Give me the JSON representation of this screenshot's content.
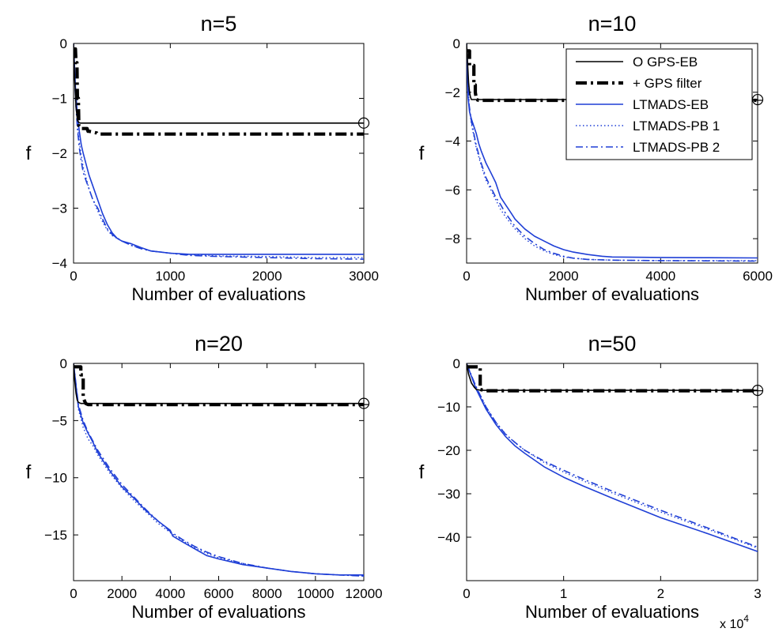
{
  "chart_data": [
    {
      "type": "line",
      "title": "n=5",
      "xlabel": "Number of evaluations",
      "ylabel": "f",
      "xlim": [
        0,
        3000
      ],
      "ylim": [
        -4,
        0
      ],
      "xticks": [
        "0",
        "1000",
        "2000",
        "3000"
      ],
      "yticks": [
        "0",
        "−1",
        "−2",
        "−3",
        "−4"
      ],
      "grid": false,
      "series": [
        {
          "name": "GPS-EB",
          "style": "solid-black",
          "x": [
            0,
            10,
            25,
            40,
            55,
            70,
            3000
          ],
          "y": [
            0,
            -0.6,
            -1.15,
            -1.4,
            -1.44,
            -1.45,
            -1.45
          ],
          "endmarker": "circle"
        },
        {
          "name": "GPS filter",
          "style": "dashdot-black-thick",
          "x": [
            0,
            20,
            25,
            35,
            40,
            50,
            55,
            70,
            140,
            150,
            160,
            240,
            250,
            3000
          ],
          "y": [
            -0.1,
            -0.1,
            -0.35,
            -0.35,
            -1.0,
            -1.0,
            -1.5,
            -1.55,
            -1.55,
            -1.6,
            -1.6,
            -1.63,
            -1.65,
            -1.65
          ],
          "endmarker": "plus"
        },
        {
          "name": "LTMADS-EB",
          "style": "solid-blue",
          "x": [
            0,
            20,
            40,
            60,
            80,
            100,
            130,
            160,
            200,
            250,
            300,
            350,
            400,
            450,
            500,
            600,
            700,
            800,
            900,
            1000,
            1100,
            1200,
            1500,
            2000,
            2500,
            3000
          ],
          "y": [
            0,
            -0.8,
            -1.3,
            -1.6,
            -1.85,
            -2.0,
            -2.2,
            -2.4,
            -2.6,
            -2.85,
            -3.1,
            -3.3,
            -3.45,
            -3.55,
            -3.6,
            -3.65,
            -3.72,
            -3.78,
            -3.8,
            -3.82,
            -3.83,
            -3.84,
            -3.84,
            -3.84,
            -3.84,
            -3.84
          ]
        },
        {
          "name": "LTMADS-PB 1",
          "style": "dotted-blue",
          "x": [
            0,
            20,
            40,
            60,
            80,
            100,
            130,
            160,
            200,
            250,
            300,
            350,
            400,
            500,
            600,
            700,
            800,
            900,
            1000,
            1100,
            1200,
            1500,
            2000,
            2500,
            3000
          ],
          "y": [
            0,
            -1.0,
            -1.5,
            -1.8,
            -2.05,
            -2.25,
            -2.45,
            -2.65,
            -2.85,
            -3.05,
            -3.25,
            -3.4,
            -3.5,
            -3.6,
            -3.68,
            -3.73,
            -3.78,
            -3.8,
            -3.82,
            -3.84,
            -3.85,
            -3.87,
            -3.88,
            -3.9,
            -3.9
          ]
        },
        {
          "name": "LTMADS-PB 2",
          "style": "dashdot-blue",
          "x": [
            0,
            20,
            40,
            60,
            80,
            100,
            130,
            160,
            200,
            250,
            300,
            350,
            400,
            500,
            600,
            700,
            800,
            900,
            1000,
            1100,
            1200,
            1500,
            2000,
            2500,
            3000
          ],
          "y": [
            0,
            -1.0,
            -1.55,
            -1.9,
            -2.15,
            -2.35,
            -2.5,
            -2.65,
            -2.85,
            -3.0,
            -3.2,
            -3.38,
            -3.48,
            -3.6,
            -3.68,
            -3.74,
            -3.78,
            -3.8,
            -3.82,
            -3.84,
            -3.86,
            -3.88,
            -3.9,
            -3.92,
            -3.93
          ]
        }
      ]
    },
    {
      "type": "line",
      "title": "n=10",
      "xlabel": "Number of evaluations",
      "ylabel": "f",
      "xlim": [
        0,
        6000
      ],
      "ylim": [
        -9,
        0
      ],
      "xticks": [
        "0",
        "2000",
        "4000",
        "6000"
      ],
      "yticks": [
        "0",
        "−2",
        "−4",
        "−6",
        "−8"
      ],
      "grid": false,
      "legend": {
        "position": "top-right",
        "entries": [
          {
            "marker": "O",
            "label": "GPS-EB",
            "style": "solid-black"
          },
          {
            "marker": "+",
            "label": "GPS filter",
            "style": "dashdot-black-thick"
          },
          {
            "marker": "",
            "label": "LTMADS-EB",
            "style": "solid-blue"
          },
          {
            "marker": "",
            "label": "LTMADS-PB 1",
            "style": "dotted-blue"
          },
          {
            "marker": "",
            "label": "LTMADS-PB 2",
            "style": "dashdot-blue"
          }
        ]
      },
      "series": [
        {
          "name": "GPS-EB",
          "style": "solid-black",
          "x": [
            0,
            20,
            40,
            60,
            80,
            100,
            150,
            6000
          ],
          "y": [
            0,
            -0.8,
            -1.6,
            -2.0,
            -2.2,
            -2.3,
            -2.3,
            -2.3
          ],
          "endmarker": "circle"
        },
        {
          "name": "GPS filter",
          "style": "dashdot-black-thick",
          "x": [
            0,
            60,
            60,
            150,
            150,
            180,
            180,
            200,
            250,
            6000
          ],
          "y": [
            -0.3,
            -0.3,
            -0.9,
            -0.9,
            -1.7,
            -1.7,
            -2.0,
            -2.3,
            -2.33,
            -2.33
          ],
          "endmarker": "plus"
        },
        {
          "name": "LTMADS-EB",
          "style": "solid-blue",
          "x": [
            0,
            30,
            60,
            100,
            150,
            200,
            250,
            300,
            400,
            500,
            600,
            700,
            800,
            900,
            1000,
            1200,
            1400,
            1600,
            1800,
            2000,
            2200,
            2500,
            2800,
            3000,
            4000,
            5000,
            6000
          ],
          "y": [
            0,
            -2.2,
            -2.8,
            -3.1,
            -3.4,
            -3.7,
            -4.1,
            -4.4,
            -4.9,
            -5.3,
            -5.7,
            -6.3,
            -6.6,
            -6.9,
            -7.2,
            -7.6,
            -7.9,
            -8.1,
            -8.3,
            -8.45,
            -8.55,
            -8.65,
            -8.72,
            -8.75,
            -8.77,
            -8.78,
            -8.79
          ]
        },
        {
          "name": "LTMADS-PB 1",
          "style": "dotted-blue",
          "x": [
            0,
            50,
            100,
            150,
            200,
            300,
            400,
            500,
            600,
            700,
            800,
            1000,
            1200,
            1400,
            1600,
            1800,
            2000,
            2200,
            2500,
            3000,
            4000,
            5000,
            6000
          ],
          "y": [
            0,
            -2.6,
            -3.3,
            -3.8,
            -4.3,
            -5.0,
            -5.6,
            -6.0,
            -6.4,
            -6.8,
            -7.1,
            -7.6,
            -8.0,
            -8.3,
            -8.5,
            -8.65,
            -8.75,
            -8.8,
            -8.85,
            -8.88,
            -8.9,
            -8.9,
            -8.9
          ]
        },
        {
          "name": "LTMADS-PB 2",
          "style": "dashdot-blue",
          "x": [
            0,
            50,
            100,
            150,
            200,
            300,
            400,
            500,
            600,
            700,
            800,
            1000,
            1200,
            1400,
            1600,
            1800,
            2000,
            2200,
            2500,
            3000,
            4000,
            5000,
            6000
          ],
          "y": [
            0,
            -2.5,
            -3.2,
            -3.7,
            -4.2,
            -4.9,
            -5.5,
            -5.9,
            -6.3,
            -6.6,
            -6.95,
            -7.5,
            -7.9,
            -8.2,
            -8.45,
            -8.6,
            -8.72,
            -8.8,
            -8.85,
            -8.88,
            -8.9,
            -8.91,
            -8.92
          ]
        }
      ]
    },
    {
      "type": "line",
      "title": "n=20",
      "xlabel": "Number of evaluations",
      "ylabel": "f",
      "xlim": [
        0,
        12000
      ],
      "ylim": [
        -19,
        0
      ],
      "xticks": [
        "0",
        "2000",
        "4000",
        "6000",
        "8000",
        "10000",
        "12000"
      ],
      "yticks": [
        "0",
        "−5",
        "−10",
        "−15"
      ],
      "grid": false,
      "series": [
        {
          "name": "GPS-EB",
          "style": "solid-black",
          "x": [
            0,
            50,
            100,
            150,
            200,
            300,
            12000
          ],
          "y": [
            0,
            -1.5,
            -2.6,
            -3.2,
            -3.4,
            -3.5,
            -3.5
          ],
          "endmarker": "circle"
        },
        {
          "name": "GPS filter",
          "style": "dashdot-black-thick",
          "x": [
            0,
            300,
            300,
            400,
            400,
            500,
            600,
            12000
          ],
          "y": [
            -0.3,
            -0.3,
            -1.0,
            -1.0,
            -3.0,
            -3.5,
            -3.6,
            -3.6
          ],
          "endmarker": "plus"
        },
        {
          "name": "LTMADS-EB",
          "style": "solid-blue",
          "x": [
            0,
            200,
            400,
            600,
            800,
            1000,
            1500,
            2000,
            2500,
            3000,
            3500,
            4000,
            4100,
            4500,
            5000,
            5500,
            6000,
            7000,
            8000,
            9000,
            10000,
            11000,
            12000
          ],
          "y": [
            0,
            -3.8,
            -5.2,
            -6.1,
            -6.9,
            -7.8,
            -9.4,
            -10.8,
            -11.8,
            -12.9,
            -13.8,
            -14.6,
            -15.1,
            -15.6,
            -16.2,
            -16.8,
            -17.1,
            -17.6,
            -17.9,
            -18.2,
            -18.4,
            -18.5,
            -18.5
          ]
        },
        {
          "name": "LTMADS-PB 1",
          "style": "dotted-blue",
          "x": [
            0,
            200,
            400,
            600,
            800,
            1000,
            1500,
            2000,
            2500,
            3000,
            3500,
            4000,
            4500,
            5000,
            5500,
            6000,
            7000,
            8000,
            9000,
            10000,
            11000,
            12000
          ],
          "y": [
            0,
            -4.0,
            -5.6,
            -6.6,
            -7.2,
            -8.0,
            -9.6,
            -10.9,
            -12.0,
            -13.0,
            -14.0,
            -14.8,
            -15.5,
            -16.1,
            -16.6,
            -17.0,
            -17.5,
            -17.9,
            -18.2,
            -18.4,
            -18.5,
            -18.6
          ]
        },
        {
          "name": "LTMADS-PB 2",
          "style": "dashdot-blue",
          "x": [
            0,
            200,
            400,
            600,
            800,
            1000,
            1500,
            2000,
            2500,
            3000,
            3500,
            4000,
            4500,
            5000,
            5500,
            6000,
            7000,
            8000,
            9000,
            10000,
            11000,
            12000
          ],
          "y": [
            0,
            -3.6,
            -5.0,
            -6.0,
            -6.8,
            -7.6,
            -9.2,
            -10.6,
            -11.7,
            -12.8,
            -13.8,
            -14.7,
            -15.4,
            -16.0,
            -16.5,
            -16.9,
            -17.5,
            -17.9,
            -18.2,
            -18.4,
            -18.5,
            -18.6
          ]
        }
      ]
    },
    {
      "type": "line",
      "title": "n=50",
      "xlabel": "Number of evaluations",
      "ylabel": "f",
      "xlim": [
        0,
        3
      ],
      "ylim": [
        -50,
        0
      ],
      "xscale_label": "x 10^4",
      "xticks": [
        "0",
        "1",
        "2",
        "3"
      ],
      "yticks": [
        "0",
        "−10",
        "−20",
        "−30",
        "−40"
      ],
      "grid": false,
      "series": [
        {
          "name": "GPS-EB",
          "style": "solid-black",
          "x": [
            0,
            0.02,
            0.05,
            0.08,
            0.1,
            0.15,
            3
          ],
          "y": [
            0,
            -2.5,
            -4.5,
            -5.5,
            -6.0,
            -6.2,
            -6.2
          ],
          "endmarker": "circle"
        },
        {
          "name": "GPS filter",
          "style": "dashdot-black-thick",
          "x": [
            0,
            0.12,
            0.12,
            0.14,
            0.14,
            0.2,
            3
          ],
          "y": [
            -0.8,
            -0.8,
            -1.0,
            -1.0,
            -6.0,
            -6.3,
            -6.3
          ],
          "endmarker": "plus"
        },
        {
          "name": "LTMADS-EB",
          "style": "solid-blue",
          "x": [
            0,
            0.05,
            0.1,
            0.2,
            0.3,
            0.4,
            0.5,
            0.6,
            0.8,
            1.0,
            1.2,
            1.5,
            2.0,
            2.5,
            3.0
          ],
          "y": [
            0,
            -3.0,
            -6.0,
            -10.5,
            -14.0,
            -16.8,
            -19.0,
            -20.7,
            -23.8,
            -26.2,
            -28.2,
            -31.0,
            -35.5,
            -39.3,
            -43.3
          ]
        },
        {
          "name": "LTMADS-PB 1",
          "style": "dotted-blue",
          "x": [
            0,
            0.05,
            0.1,
            0.2,
            0.3,
            0.4,
            0.5,
            0.6,
            0.8,
            1.0,
            1.2,
            1.5,
            2.0,
            2.5,
            3.0
          ],
          "y": [
            0,
            -2.8,
            -5.5,
            -10.0,
            -13.5,
            -16.2,
            -18.3,
            -20.0,
            -22.8,
            -25.0,
            -27.0,
            -29.8,
            -34.2,
            -38.3,
            -42.5
          ]
        },
        {
          "name": "LTMADS-PB 2",
          "style": "dashdot-blue",
          "x": [
            0,
            0.05,
            0.1,
            0.2,
            0.3,
            0.4,
            0.5,
            0.6,
            0.8,
            1.0,
            1.2,
            1.5,
            2.0,
            2.5,
            3.0
          ],
          "y": [
            0,
            -2.8,
            -5.5,
            -10.0,
            -13.5,
            -16.3,
            -18.2,
            -20.0,
            -22.5,
            -24.6,
            -26.6,
            -29.4,
            -33.8,
            -38.0,
            -42.3
          ]
        }
      ]
    }
  ]
}
